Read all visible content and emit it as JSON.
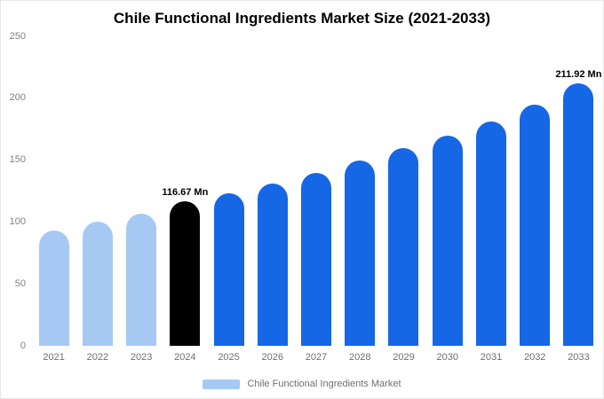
{
  "chart_data": {
    "type": "bar",
    "title": "Chile Functional Ingredients Market Size (2021-2033)",
    "categories": [
      "2021",
      "2022",
      "2023",
      "2024",
      "2025",
      "2026",
      "2027",
      "2028",
      "2029",
      "2030",
      "2031",
      "2032",
      "2033"
    ],
    "values": [
      93,
      100,
      107,
      116.67,
      123,
      131,
      140,
      150,
      160,
      170,
      181,
      195,
      211.92
    ],
    "point_labels": [
      "",
      "",
      "",
      "116.67 Mn",
      "",
      "",
      "",
      "",
      "",
      "",
      "",
      "",
      "211.92 Mn"
    ],
    "bar_colors": [
      "#a6c9f3",
      "#a6c9f3",
      "#a6c9f3",
      "#000000",
      "#1667e6",
      "#1667e6",
      "#1667e6",
      "#1667e6",
      "#1667e6",
      "#1667e6",
      "#1667e6",
      "#1667e6",
      "#1667e6"
    ],
    "ylim": [
      0,
      250
    ],
    "yticks": [
      0,
      50,
      100,
      150,
      200,
      250
    ],
    "grid": false,
    "legend_position": "bottom",
    "legend": {
      "label": "Chile Functional Ingredients Market",
      "swatch_color": "#a6c9f3"
    },
    "colors": {
      "light_blue": "#a6c9f3",
      "bright_blue": "#1667e6",
      "highlight_black": "#000000",
      "axis_text": "#808080"
    }
  }
}
